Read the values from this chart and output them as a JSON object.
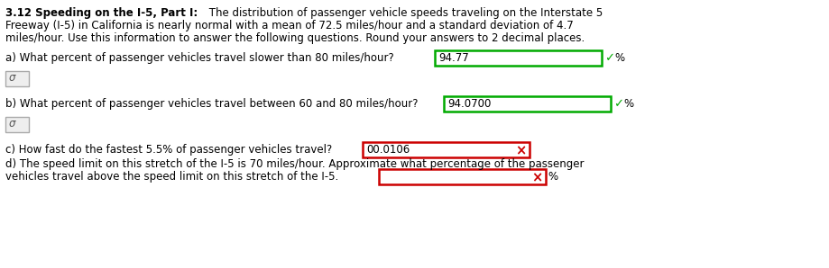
{
  "bg_color": "#ffffff",
  "text_color": "#000000",
  "correct_color": "#00aa00",
  "wrong_color": "#cc0000",
  "font_size": 8.5,
  "title_font_size": 8.5,
  "lines": {
    "header": [
      {
        "bold": "3.12 Speeding on the I-5, Part I:",
        "normal": "  The distribution of passenger vehicle speeds traveling on the Interstate 5"
      },
      {
        "normal": "Freeway (I-5) in California is nearly normal with a mean of 72.5 miles/hour and a standard deviation of 4.7"
      },
      {
        "normal": "miles/hour. Use this information to answer the following questions. Round your answers to 2 decimal places."
      }
    ]
  },
  "qa_a": {
    "question": "a) What percent of passenger vehicles travel slower than 80 miles/hour?",
    "answer": "94.77",
    "correct": true
  },
  "qa_b": {
    "question": "b) What percent of passenger vehicles travel between 60 and 80 miles/hour?",
    "answer": "94.0700",
    "correct": true
  },
  "qa_c": {
    "question": "c) How fast do the fastest 5.5% of passenger vehicles travel?",
    "answer": "00.0106",
    "correct": false
  },
  "qa_d_line1": "d) The speed limit on this stretch of the I-5 is 70 miles/hour. Approximate what percentage of the passenger",
  "qa_d_line2": "vehicles travel above the speed limit on this stretch of the I-5.",
  "icon_symbol": "σ",
  "checkmark": "✓",
  "crossmark": "×"
}
